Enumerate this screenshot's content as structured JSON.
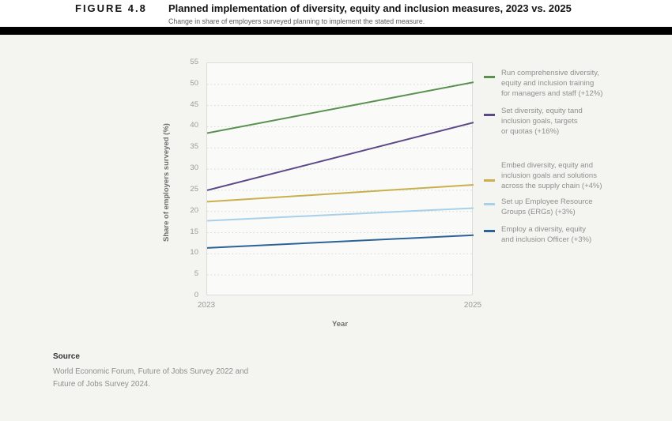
{
  "header": {
    "figure_label": "FIGURE 4.8",
    "title": "Planned implementation of diversity, equity and inclusion measures, 2023 vs. 2025",
    "subtitle": "Change in share of employers surveyed planning to implement the stated measure."
  },
  "chart_data": {
    "type": "line",
    "title": "Planned implementation of diversity, equity and inclusion measures, 2023 vs. 2025",
    "subtitle": "Change in share of employers surveyed planning to implement the stated measure.",
    "x": [
      2023,
      2025
    ],
    "xtick_labels": [
      "2023",
      "2025"
    ],
    "xlabel": "Year",
    "ylabel": "Share of employers surveyed (%)",
    "ylim": [
      0,
      55
    ],
    "yticks": [
      0,
      5,
      10,
      15,
      20,
      25,
      30,
      35,
      40,
      45,
      50,
      55
    ],
    "grid": "horizontal-dotted",
    "legend_position": "right",
    "series": [
      {
        "name": "Run comprehensive diversity, equity and inclusion training for managers and staff (+12%)",
        "label_lines": [
          "Run comprehensive diversity,",
          "equity and inclusion training",
          "for managers and staff (+12%)"
        ],
        "color": "#5a9150",
        "values": [
          38.5,
          50.5
        ]
      },
      {
        "name": "Set diversity, equity tand inclusion goals, targets or quotas (+16%)",
        "label_lines": [
          "Set diversity, equity tand",
          "inclusion goals, targets",
          "or quotas (+16%)"
        ],
        "color": "#5c4887",
        "values": [
          25.0,
          41.0
        ]
      },
      {
        "name": "Embed diversity, equity and inclusion goals and solutions across the supply chain (+4%)",
        "label_lines": [
          "Embed diversity, equity and",
          "inclusion goals and solutions",
          "across the supply chain (+4%)"
        ],
        "color": "#c9b04d",
        "values": [
          22.3,
          26.3
        ]
      },
      {
        "name": "Set up Employee Resource Groups (ERGs) (+3%)",
        "label_lines": [
          "Set up Employee Resource",
          "Groups (ERGs) (+3%)"
        ],
        "color": "#a8d0e8",
        "values": [
          17.8,
          20.8
        ]
      },
      {
        "name": "Employ a diversity, equity and inclusion Officer (+3%)",
        "label_lines": [
          "Employ a diversity, equity",
          "and inclusion Officer (+3%)"
        ],
        "color": "#2b6399",
        "values": [
          11.4,
          14.4
        ]
      }
    ]
  },
  "source": {
    "label": "Source",
    "lines": [
      "World Economic Forum, Future of Jobs Survey 2022 and",
      "Future of Jobs Survey 2024."
    ]
  }
}
